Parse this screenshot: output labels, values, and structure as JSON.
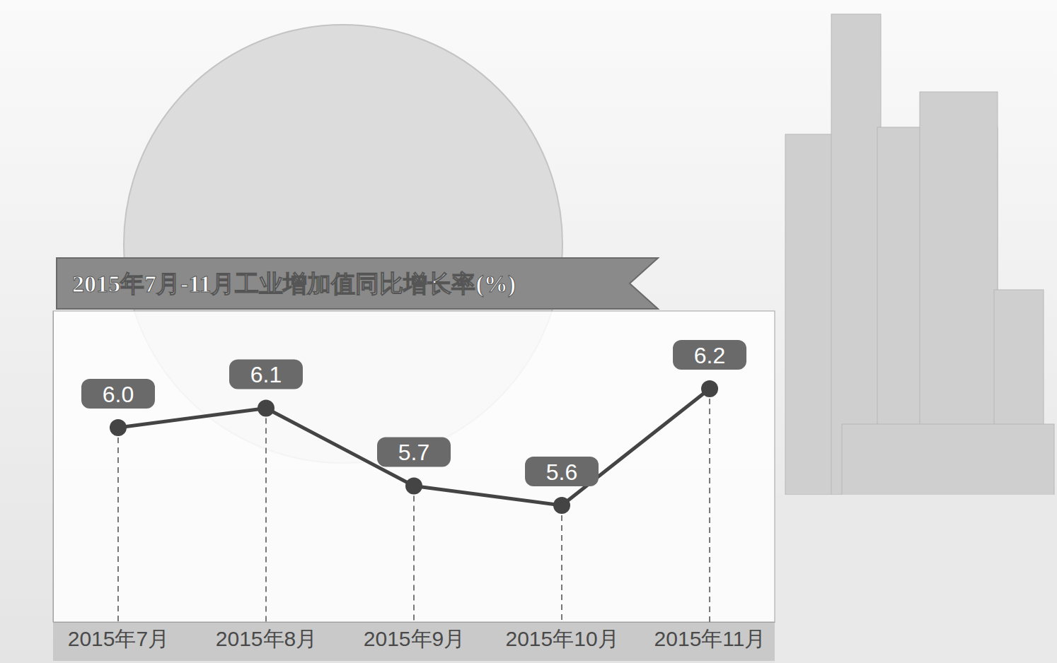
{
  "chart_data": {
    "type": "line",
    "title": "2015年7月-11月工业增加值同比增长率(%)",
    "categories": [
      "2015年7月",
      "2015年8月",
      "2015年9月",
      "2015年10月",
      "2015年11月"
    ],
    "values": [
      6.0,
      6.1,
      5.7,
      5.6,
      6.2
    ],
    "value_labels": [
      "6.0",
      "6.1",
      "5.7",
      "5.6",
      "6.2"
    ],
    "ylim": [
      5.0,
      6.6
    ],
    "data_labels": true,
    "tick_labels": "x",
    "color": "#444444",
    "marker": "circle"
  }
}
